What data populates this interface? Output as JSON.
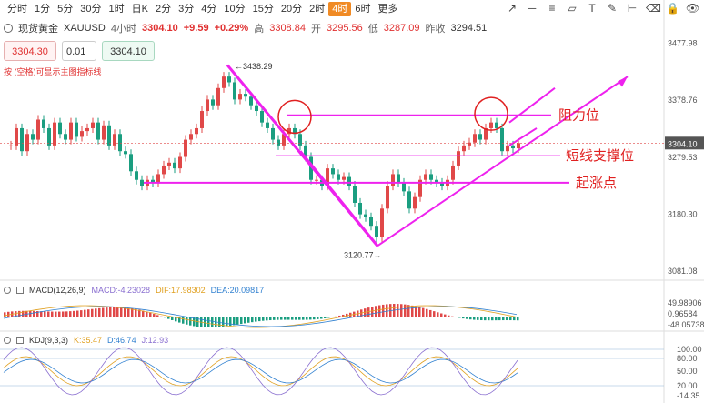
{
  "timeframes": [
    "分时",
    "1分",
    "5分",
    "30分",
    "1时",
    "日K",
    "2分",
    "3分",
    "4分",
    "10分",
    "15分",
    "20分",
    "2时",
    "4时",
    "6时",
    "更多"
  ],
  "active_timeframe": "4时",
  "toolbar_icons": [
    "trend-line-icon",
    "horizontal-line-icon",
    "fib-icon",
    "channel-icon",
    "text-tool-icon",
    "brush-icon",
    "measure-icon",
    "eraser-icon",
    "lock-icon",
    "eye-icon"
  ],
  "info": {
    "symbol": "现货黄金",
    "code": "XAUUSD",
    "interval": "4小时",
    "price": "3304.10",
    "change": "+9.59",
    "change_pct": "+0.29%",
    "high_label": "高",
    "high": "3308.84",
    "open_label": "开",
    "open": "3295.56",
    "low_label": "低",
    "low": "3287.09",
    "prev_label": "昨收",
    "prev": "3294.51"
  },
  "order": {
    "sell": "3304.30",
    "qty": "0.01",
    "buy": "3304.10"
  },
  "hint": "按 (空格)可显示主图指标线",
  "price_axis": {
    "ticks": [
      "3477.98",
      "3378.76",
      "3279.53",
      "3180.30",
      "3081.08"
    ],
    "current": "3304.10"
  },
  "marks": {
    "high": "3438.29",
    "low": "3120.77"
  },
  "annotations": {
    "resistance": "阻力位",
    "support": "短线支撑位",
    "origin": "起涨点"
  },
  "macd": {
    "label": "MACD(12,26,9)",
    "macd_val": "MACD:-4.23028",
    "dif_val": "DIF:17.98302",
    "dea_val": "DEA:20.09817",
    "ticks": [
      "49.98906",
      "0.96584",
      "-48.05738"
    ]
  },
  "kdj": {
    "label": "KDJ(9,3,3)",
    "k_val": "K:35.47",
    "d_val": "D:46.74",
    "j_val": "J:12.93",
    "ticks": [
      "100.00",
      "80.00",
      "50.00",
      "20.00",
      "-14.35"
    ]
  },
  "colors": {
    "up": "#e04848",
    "down": "#1a9e80",
    "annotation": "#ee22ee",
    "accent": "#f08a24"
  }
}
